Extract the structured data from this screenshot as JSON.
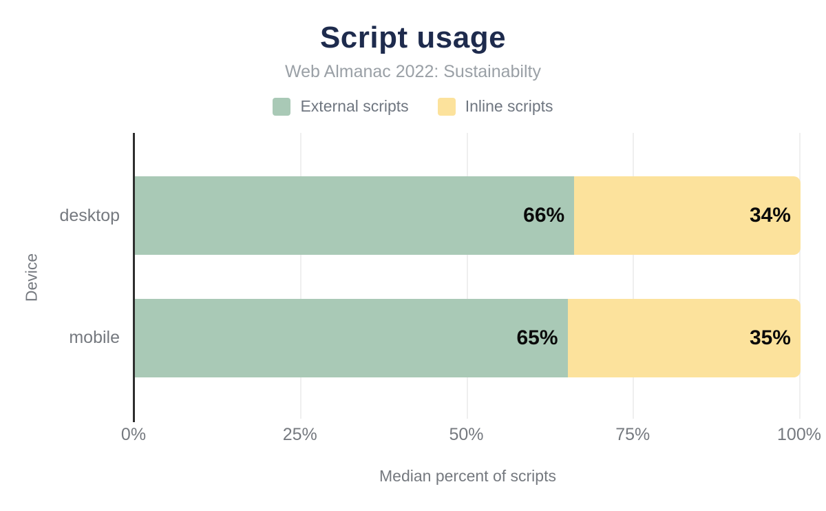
{
  "chart_data": {
    "type": "bar",
    "orientation": "horizontal",
    "stacked": true,
    "title": "Script usage",
    "subtitle": "Web Almanac 2022: Sustainabilty",
    "categories": [
      "desktop",
      "mobile"
    ],
    "series": [
      {
        "name": "External scripts",
        "color": "#a9c9b6",
        "values": [
          66,
          65
        ]
      },
      {
        "name": "Inline scripts",
        "color": "#fce29c",
        "values": [
          34,
          35
        ]
      }
    ],
    "data_labels": [
      [
        "66%",
        "34%"
      ],
      [
        "65%",
        "35%"
      ]
    ],
    "xlabel": "Median percent of scripts",
    "ylabel": "Device",
    "xlim": [
      0,
      100
    ],
    "xticks": [
      "0%",
      "25%",
      "50%",
      "75%",
      "100%"
    ],
    "legend_position": "top",
    "grid": true
  },
  "colors": {
    "title": "#1e2b4d",
    "subtitle": "#9aa0a6",
    "legend_text": "#6f7680",
    "axis_text": "#75797f",
    "data_label": "#0a0a0a",
    "gridline": "#efefef",
    "axis_line": "#2e2e2e",
    "background": "#ffffff"
  }
}
